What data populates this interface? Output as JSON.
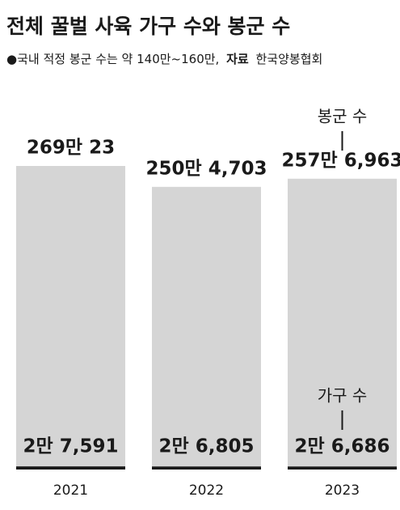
{
  "chart_data": {
    "type": "bar",
    "title": "전체 꿀벌 사육 가구 수와 봉군 수",
    "subtitle": "●국내 적정 봉군 수는 약 140만~160만,",
    "source_label": "자료",
    "source": "한국양봉협회",
    "categories": [
      "2021",
      "2022",
      "2023"
    ],
    "series": [
      {
        "name": "봉군 수",
        "color": "#d5d5d5",
        "values": [
          2690023,
          2504703,
          2576963
        ],
        "value_labels": [
          "269만 23",
          "250만 4,703",
          "257만 6,963"
        ]
      },
      {
        "name": "가구 수",
        "color": "#1a1a1a",
        "values": [
          27591,
          26805,
          26686
        ],
        "value_labels": [
          "2만 7,591",
          "2만 6,805",
          "2만 6,686"
        ]
      }
    ]
  }
}
